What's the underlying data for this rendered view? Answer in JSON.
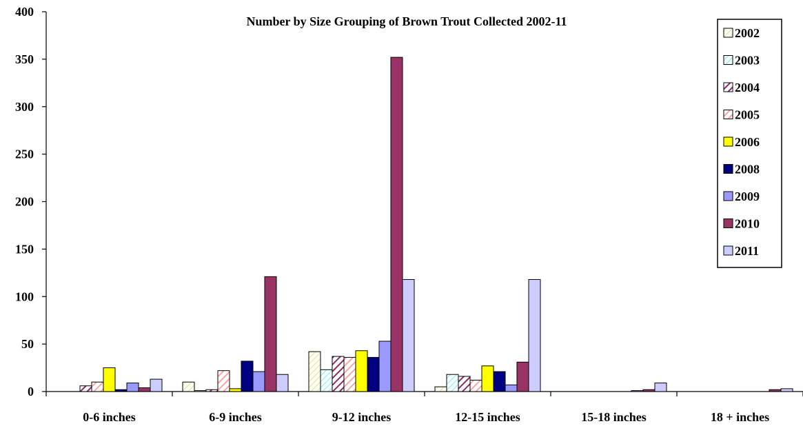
{
  "chart_data": {
    "type": "bar",
    "title": "Number by Size Grouping of Brown Trout Collected 2002-11",
    "xlabel": "",
    "ylabel": "",
    "ylim": [
      0,
      400
    ],
    "yticks": [
      0,
      50,
      100,
      150,
      200,
      250,
      300,
      350,
      400
    ],
    "categories": [
      "0-6 inches",
      "6-9 inches",
      "9-12 inches",
      "12-15 inches",
      "15-18 inches",
      "18 + inches"
    ],
    "legend_position": "top-right",
    "grid": false,
    "series": [
      {
        "name": "2002",
        "color": "#FFFFE6",
        "pattern": "hatch-light",
        "values": [
          0,
          10,
          42,
          5,
          0,
          0
        ]
      },
      {
        "name": "2003",
        "color": "#E6FFFF",
        "pattern": "hatch-light",
        "values": [
          0,
          1,
          23,
          18,
          0,
          0
        ]
      },
      {
        "name": "2004",
        "color": "#8B2A6B",
        "pattern": "hatch-dark",
        "values": [
          6,
          2,
          37,
          16,
          0,
          0
        ]
      },
      {
        "name": "2005",
        "color": "#FF9999",
        "pattern": "hatch-pink",
        "values": [
          10,
          22,
          36,
          12,
          0,
          0
        ]
      },
      {
        "name": "2006",
        "color": "#FFFF00",
        "pattern": "solid",
        "values": [
          25,
          3,
          43,
          27,
          0,
          0
        ]
      },
      {
        "name": "2008",
        "color": "#000080",
        "pattern": "solid",
        "values": [
          2,
          32,
          36,
          21,
          0,
          0
        ]
      },
      {
        "name": "2009",
        "color": "#9999FF",
        "pattern": "solid",
        "values": [
          9,
          21,
          53,
          7,
          1,
          0
        ]
      },
      {
        "name": "2010",
        "color": "#993366",
        "pattern": "solid",
        "values": [
          4,
          121,
          352,
          31,
          2,
          2
        ]
      },
      {
        "name": "2011",
        "color": "#CCCCFF",
        "pattern": "solid",
        "values": [
          13,
          18,
          118,
          118,
          9,
          3
        ]
      }
    ]
  }
}
